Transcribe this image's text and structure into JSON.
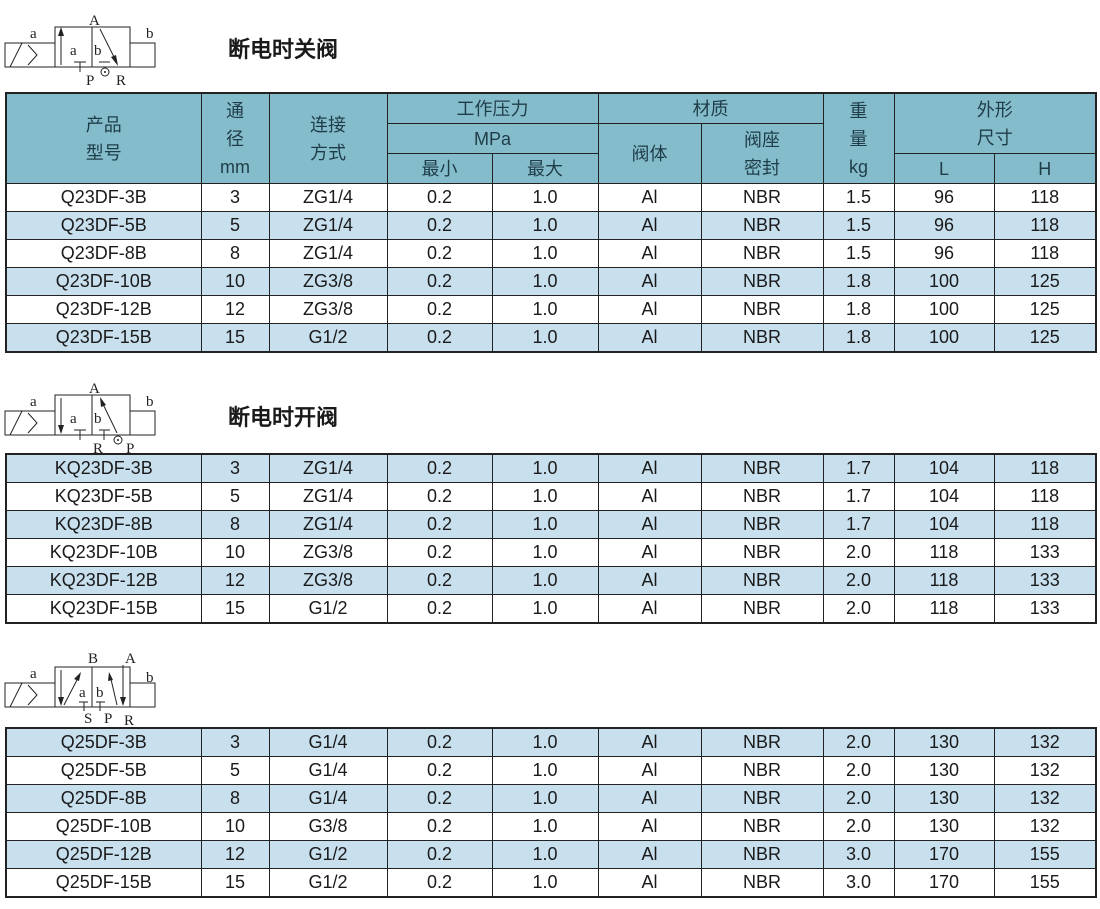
{
  "colors": {
    "header_bg": "#84bccb",
    "stripe_bg": "#c8dfee",
    "border": "#222222"
  },
  "columns": [
    "产品型号",
    "通径 mm",
    "连接方式",
    "最小",
    "最大",
    "阀体",
    "阀座密封",
    "重量 kg",
    "L",
    "H"
  ],
  "header": {
    "model": [
      "产品",
      "型号"
    ],
    "bore": [
      "通",
      "径",
      "mm"
    ],
    "conn": [
      "连接",
      "方式"
    ],
    "pressure": "工作压力",
    "pressure_unit": "MPa",
    "min": "最小",
    "max": "最大",
    "material": "材质",
    "body": "阀体",
    "seal": [
      "阀座",
      "密封"
    ],
    "weight": [
      "重",
      "量",
      "kg"
    ],
    "dims": [
      "外形",
      "尺寸"
    ],
    "L": "L",
    "H": "H"
  },
  "sections": [
    {
      "title": "断电时关阀",
      "symbol": {
        "left": "a",
        "right": "b",
        "inner_a": "a",
        "inner_b": "b",
        "top": [
          "A"
        ],
        "bottom": [
          "P",
          "R"
        ]
      },
      "rows": [
        [
          "Q23DF-3B",
          "3",
          "ZG1/4",
          "0.2",
          "1.0",
          "Al",
          "NBR",
          "1.5",
          "96",
          "118"
        ],
        [
          "Q23DF-5B",
          "5",
          "ZG1/4",
          "0.2",
          "1.0",
          "Al",
          "NBR",
          "1.5",
          "96",
          "118"
        ],
        [
          "Q23DF-8B",
          "8",
          "ZG1/4",
          "0.2",
          "1.0",
          "Al",
          "NBR",
          "1.5",
          "96",
          "118"
        ],
        [
          "Q23DF-10B",
          "10",
          "ZG3/8",
          "0.2",
          "1.0",
          "Al",
          "NBR",
          "1.8",
          "100",
          "125"
        ],
        [
          "Q23DF-12B",
          "12",
          "ZG3/8",
          "0.2",
          "1.0",
          "Al",
          "NBR",
          "1.8",
          "100",
          "125"
        ],
        [
          "Q23DF-15B",
          "15",
          "G1/2",
          "0.2",
          "1.0",
          "Al",
          "NBR",
          "1.8",
          "100",
          "125"
        ]
      ]
    },
    {
      "title": "断电时开阀",
      "symbol": {
        "left": "a",
        "right": "b",
        "inner_a": "a",
        "inner_b": "b",
        "top": [
          "A"
        ],
        "bottom": [
          "R",
          "P"
        ]
      },
      "rows": [
        [
          "KQ23DF-3B",
          "3",
          "ZG1/4",
          "0.2",
          "1.0",
          "Al",
          "NBR",
          "1.7",
          "104",
          "118"
        ],
        [
          "KQ23DF-5B",
          "5",
          "ZG1/4",
          "0.2",
          "1.0",
          "Al",
          "NBR",
          "1.7",
          "104",
          "118"
        ],
        [
          "KQ23DF-8B",
          "8",
          "ZG1/4",
          "0.2",
          "1.0",
          "Al",
          "NBR",
          "1.7",
          "104",
          "118"
        ],
        [
          "KQ23DF-10B",
          "10",
          "ZG3/8",
          "0.2",
          "1.0",
          "Al",
          "NBR",
          "2.0",
          "118",
          "133"
        ],
        [
          "KQ23DF-12B",
          "12",
          "ZG3/8",
          "0.2",
          "1.0",
          "Al",
          "NBR",
          "2.0",
          "118",
          "133"
        ],
        [
          "KQ23DF-15B",
          "15",
          "G1/2",
          "0.2",
          "1.0",
          "Al",
          "NBR",
          "2.0",
          "118",
          "133"
        ]
      ]
    },
    {
      "title": "",
      "symbol": {
        "left": "a",
        "right": "b",
        "inner_a": "a",
        "inner_b": "b",
        "top": [
          "B",
          "A"
        ],
        "bottom": [
          "S",
          "P",
          "R"
        ]
      },
      "rows": [
        [
          "Q25DF-3B",
          "3",
          "G1/4",
          "0.2",
          "1.0",
          "Al",
          "NBR",
          "2.0",
          "130",
          "132"
        ],
        [
          "Q25DF-5B",
          "5",
          "G1/4",
          "0.2",
          "1.0",
          "Al",
          "NBR",
          "2.0",
          "130",
          "132"
        ],
        [
          "Q25DF-8B",
          "8",
          "G1/4",
          "0.2",
          "1.0",
          "Al",
          "NBR",
          "2.0",
          "130",
          "132"
        ],
        [
          "Q25DF-10B",
          "10",
          "G3/8",
          "0.2",
          "1.0",
          "Al",
          "NBR",
          "2.0",
          "130",
          "132"
        ],
        [
          "Q25DF-12B",
          "12",
          "G1/2",
          "0.2",
          "1.0",
          "Al",
          "NBR",
          "3.0",
          "170",
          "155"
        ],
        [
          "Q25DF-15B",
          "15",
          "G1/2",
          "0.2",
          "1.0",
          "Al",
          "NBR",
          "3.0",
          "170",
          "155"
        ]
      ]
    }
  ]
}
